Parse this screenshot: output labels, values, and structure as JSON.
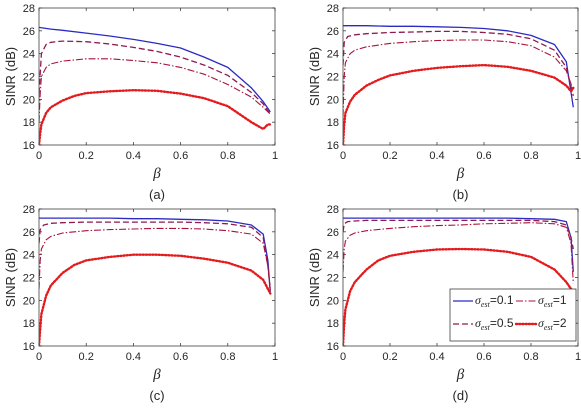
{
  "colors": {
    "s1": "#2b2bc4",
    "s2": "#8e1a4f",
    "s3": "#a8123a",
    "s4": "#e41a1c",
    "axis": "#262626"
  },
  "legend": {
    "placement": "lower-right of panel (d)"
  },
  "chart_data": [
    {
      "caption": "(a)",
      "type": "line",
      "xlabel": "β",
      "ylabel": "SINR (dB)",
      "xlim": [
        0,
        1
      ],
      "ylim": [
        16,
        28
      ],
      "xticks": [
        "0",
        "0.2",
        "0.4",
        "0.6",
        "0.8",
        "1"
      ],
      "yticks": [
        "16",
        "18",
        "20",
        "22",
        "24",
        "26",
        "28"
      ],
      "series": [
        {
          "name": "σest=0.1",
          "x": [
            0,
            0.05,
            0.1,
            0.2,
            0.3,
            0.4,
            0.5,
            0.6,
            0.7,
            0.8,
            0.9,
            0.95,
            0.98
          ],
          "y": [
            26.3,
            26.15,
            26.05,
            25.8,
            25.55,
            25.25,
            24.9,
            24.5,
            23.7,
            22.8,
            21.0,
            19.8,
            18.9
          ]
        },
        {
          "name": "σest=0.5",
          "x": [
            0,
            0.01,
            0.03,
            0.05,
            0.1,
            0.2,
            0.3,
            0.4,
            0.5,
            0.6,
            0.7,
            0.8,
            0.9,
            0.95,
            0.98
          ],
          "y": [
            20.5,
            24.0,
            24.8,
            25.0,
            25.1,
            25.05,
            24.85,
            24.55,
            24.2,
            23.7,
            23.0,
            22.1,
            20.6,
            19.6,
            18.7
          ]
        },
        {
          "name": "σest=1",
          "x": [
            0,
            0.005,
            0.01,
            0.03,
            0.05,
            0.1,
            0.2,
            0.3,
            0.4,
            0.5,
            0.6,
            0.7,
            0.8,
            0.9,
            0.95,
            0.98
          ],
          "y": [
            18.0,
            20.5,
            22.0,
            22.8,
            23.1,
            23.35,
            23.55,
            23.55,
            23.4,
            23.2,
            22.8,
            22.2,
            21.3,
            20.2,
            19.3,
            18.7
          ]
        },
        {
          "name": "σest=2",
          "x": [
            0,
            0.005,
            0.01,
            0.03,
            0.05,
            0.1,
            0.15,
            0.2,
            0.3,
            0.4,
            0.5,
            0.6,
            0.7,
            0.8,
            0.85,
            0.9,
            0.95,
            0.97,
            0.98
          ],
          "y": [
            16.0,
            17.0,
            17.8,
            18.8,
            19.3,
            19.9,
            20.3,
            20.55,
            20.7,
            20.8,
            20.75,
            20.5,
            20.1,
            19.4,
            18.7,
            18.0,
            17.4,
            17.8,
            17.8
          ]
        }
      ]
    },
    {
      "caption": "(b)",
      "type": "line",
      "xlabel": "β",
      "ylabel": "SINR (dB)",
      "xlim": [
        0,
        1
      ],
      "ylim": [
        16,
        28
      ],
      "xticks": [
        "0",
        "0.2",
        "0.4",
        "0.6",
        "0.8",
        "1"
      ],
      "yticks": [
        "16",
        "18",
        "20",
        "22",
        "24",
        "26",
        "28"
      ],
      "series": [
        {
          "name": "σest=0.1",
          "x": [
            0,
            0.1,
            0.2,
            0.3,
            0.4,
            0.5,
            0.6,
            0.7,
            0.8,
            0.9,
            0.95,
            0.98
          ],
          "y": [
            26.45,
            26.45,
            26.4,
            26.4,
            26.35,
            26.3,
            26.2,
            26.0,
            25.6,
            24.8,
            23.3,
            19.3
          ]
        },
        {
          "name": "σest=0.5",
          "x": [
            0,
            0.005,
            0.02,
            0.05,
            0.1,
            0.2,
            0.3,
            0.4,
            0.5,
            0.6,
            0.7,
            0.8,
            0.9,
            0.95,
            0.98
          ],
          "y": [
            23.0,
            25.0,
            25.5,
            25.65,
            25.75,
            25.85,
            25.9,
            25.95,
            25.95,
            25.85,
            25.7,
            25.3,
            24.3,
            22.8,
            20.3
          ]
        },
        {
          "name": "σest=1",
          "x": [
            0,
            0.005,
            0.01,
            0.03,
            0.05,
            0.1,
            0.2,
            0.3,
            0.4,
            0.5,
            0.6,
            0.7,
            0.8,
            0.9,
            0.95,
            0.98
          ],
          "y": [
            18.5,
            22.0,
            23.2,
            24.0,
            24.3,
            24.6,
            24.9,
            25.05,
            25.15,
            25.2,
            25.2,
            25.05,
            24.7,
            23.7,
            22.5,
            20.8
          ]
        },
        {
          "name": "σest=2",
          "x": [
            0,
            0.005,
            0.01,
            0.03,
            0.05,
            0.1,
            0.15,
            0.2,
            0.3,
            0.4,
            0.5,
            0.6,
            0.7,
            0.8,
            0.9,
            0.95,
            0.97,
            0.98
          ],
          "y": [
            16.0,
            17.8,
            18.8,
            19.8,
            20.4,
            21.2,
            21.7,
            22.1,
            22.5,
            22.75,
            22.9,
            23.0,
            22.85,
            22.5,
            21.9,
            21.2,
            20.7,
            21.0
          ]
        }
      ]
    },
    {
      "caption": "(c)",
      "type": "line",
      "xlabel": "β",
      "ylabel": "SINR (dB)",
      "xlim": [
        0,
        1
      ],
      "ylim": [
        16,
        28
      ],
      "xticks": [
        "0",
        "0.2",
        "0.4",
        "0.6",
        "0.8",
        "1"
      ],
      "yticks": [
        "16",
        "18",
        "20",
        "22",
        "24",
        "26",
        "28"
      ],
      "series": [
        {
          "name": "σest=0.1",
          "x": [
            0,
            0.1,
            0.2,
            0.3,
            0.4,
            0.5,
            0.6,
            0.7,
            0.8,
            0.9,
            0.95,
            0.97,
            0.98
          ],
          "y": [
            27.2,
            27.2,
            27.2,
            27.2,
            27.15,
            27.15,
            27.1,
            27.05,
            26.95,
            26.6,
            25.8,
            23.5,
            20.7
          ]
        },
        {
          "name": "σest=0.5",
          "x": [
            0,
            0.005,
            0.02,
            0.05,
            0.1,
            0.2,
            0.3,
            0.4,
            0.5,
            0.6,
            0.7,
            0.8,
            0.9,
            0.95,
            0.97,
            0.98
          ],
          "y": [
            25.0,
            26.2,
            26.6,
            26.75,
            26.8,
            26.85,
            26.85,
            26.85,
            26.85,
            26.85,
            26.8,
            26.7,
            26.4,
            25.5,
            23.0,
            20.8
          ]
        },
        {
          "name": "σest=1",
          "x": [
            0,
            0.005,
            0.01,
            0.03,
            0.05,
            0.1,
            0.2,
            0.3,
            0.4,
            0.5,
            0.6,
            0.7,
            0.8,
            0.9,
            0.95,
            0.97,
            0.98
          ],
          "y": [
            21.0,
            23.5,
            24.5,
            25.3,
            25.6,
            25.9,
            26.1,
            26.2,
            26.25,
            26.3,
            26.3,
            26.25,
            26.1,
            25.8,
            25.0,
            23.0,
            20.9
          ]
        },
        {
          "name": "σest=2",
          "x": [
            0,
            0.005,
            0.01,
            0.03,
            0.05,
            0.1,
            0.15,
            0.2,
            0.3,
            0.4,
            0.5,
            0.6,
            0.7,
            0.8,
            0.9,
            0.95,
            0.97,
            0.98
          ],
          "y": [
            16.0,
            17.5,
            18.8,
            20.4,
            21.3,
            22.4,
            23.1,
            23.5,
            23.8,
            24.0,
            24.0,
            23.9,
            23.65,
            23.3,
            22.6,
            21.8,
            21.0,
            20.6
          ]
        }
      ]
    },
    {
      "caption": "(d)",
      "type": "line",
      "xlabel": "β",
      "ylabel": "SINR (dB)",
      "xlim": [
        0,
        1
      ],
      "ylim": [
        16,
        28
      ],
      "xticks": [
        "0",
        "0.2",
        "0.4",
        "0.6",
        "0.8",
        "1"
      ],
      "yticks": [
        "16",
        "18",
        "20",
        "22",
        "24",
        "26",
        "28"
      ],
      "legend": [
        "σest=0.1",
        "σest=1",
        "σest=0.5",
        "σest=2"
      ],
      "series": [
        {
          "name": "σest=0.1",
          "x": [
            0,
            0.1,
            0.2,
            0.3,
            0.4,
            0.5,
            0.6,
            0.7,
            0.8,
            0.9,
            0.95,
            0.97,
            0.98
          ],
          "y": [
            27.2,
            27.2,
            27.2,
            27.2,
            27.2,
            27.2,
            27.2,
            27.2,
            27.15,
            27.1,
            26.9,
            25.5,
            22.5
          ]
        },
        {
          "name": "σest=0.5",
          "x": [
            0,
            0.005,
            0.02,
            0.05,
            0.1,
            0.2,
            0.3,
            0.4,
            0.5,
            0.6,
            0.7,
            0.8,
            0.9,
            0.95,
            0.97,
            0.98
          ],
          "y": [
            26.0,
            26.7,
            26.9,
            26.95,
            27.0,
            27.0,
            27.0,
            27.0,
            27.0,
            27.0,
            27.0,
            27.0,
            26.9,
            26.6,
            25.5,
            24.5
          ]
        },
        {
          "name": "σest=1",
          "x": [
            0,
            0.005,
            0.01,
            0.03,
            0.05,
            0.1,
            0.2,
            0.3,
            0.4,
            0.5,
            0.6,
            0.7,
            0.8,
            0.9,
            0.95,
            0.97,
            0.98
          ],
          "y": [
            22.5,
            24.5,
            25.2,
            25.7,
            25.9,
            26.1,
            26.3,
            26.45,
            26.55,
            26.6,
            26.7,
            26.75,
            26.8,
            26.7,
            26.4,
            25.0,
            21.5
          ]
        },
        {
          "name": "σest=2",
          "x": [
            0,
            0.005,
            0.01,
            0.03,
            0.05,
            0.1,
            0.15,
            0.2,
            0.3,
            0.4,
            0.5,
            0.6,
            0.7,
            0.8,
            0.9,
            0.95,
            0.97,
            0.98
          ],
          "y": [
            16.0,
            18.0,
            19.2,
            20.8,
            21.6,
            22.7,
            23.5,
            23.9,
            24.25,
            24.45,
            24.5,
            24.45,
            24.25,
            23.8,
            22.7,
            21.6,
            21.0,
            20.6
          ]
        }
      ]
    }
  ]
}
